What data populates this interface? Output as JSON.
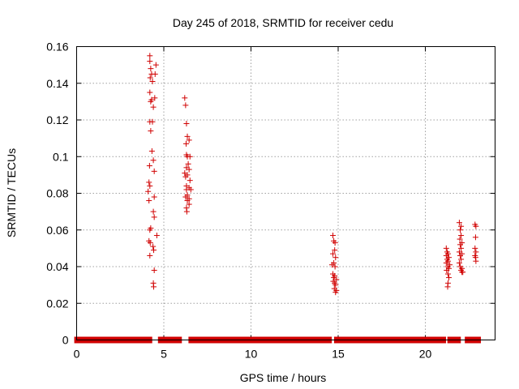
{
  "chart_data": {
    "type": "scatter",
    "title": "Day 245 of 2018, SRMTID for receiver cedu",
    "xlabel": "GPS time / hours",
    "ylabel": "SRMTID / TECUs",
    "xlim": [
      0,
      24
    ],
    "ylim": [
      0,
      0.16
    ],
    "xticks": [
      0,
      5,
      10,
      15,
      20
    ],
    "xtick_labels": [
      "0",
      "5",
      "10",
      "15",
      "20"
    ],
    "yticks": [
      0,
      0.02,
      0.04,
      0.06,
      0.08,
      0.1,
      0.12,
      0.14,
      0.16
    ],
    "ytick_labels": [
      "0",
      "0.02",
      "0.04",
      "0.06",
      "0.08",
      "0.1",
      "0.12",
      "0.14",
      "0.16"
    ],
    "grid": true,
    "marker": "plus",
    "series_color": "#d00000",
    "baseline_zero_intervals": [
      [
        0.05,
        4.15
      ],
      [
        4.85,
        5.85
      ],
      [
        6.6,
        9.25
      ],
      [
        9.35,
        10.55
      ],
      [
        10.9,
        14.45
      ],
      [
        14.95,
        21.0
      ],
      [
        21.45,
        21.85
      ],
      [
        22.45,
        23.0
      ]
    ],
    "points": [
      [
        4.2,
        0.155
      ],
      [
        4.2,
        0.152
      ],
      [
        4.25,
        0.148
      ],
      [
        4.3,
        0.145
      ],
      [
        4.22,
        0.143
      ],
      [
        4.35,
        0.141
      ],
      [
        4.2,
        0.135
      ],
      [
        4.3,
        0.131
      ],
      [
        4.25,
        0.13
      ],
      [
        4.4,
        0.127
      ],
      [
        4.2,
        0.119
      ],
      [
        4.35,
        0.119
      ],
      [
        4.25,
        0.114
      ],
      [
        4.32,
        0.103
      ],
      [
        4.4,
        0.098
      ],
      [
        4.18,
        0.095
      ],
      [
        4.45,
        0.092
      ],
      [
        4.15,
        0.086
      ],
      [
        4.2,
        0.084
      ],
      [
        4.1,
        0.081
      ],
      [
        4.15,
        0.076
      ],
      [
        4.45,
        0.078
      ],
      [
        4.4,
        0.07
      ],
      [
        4.45,
        0.067
      ],
      [
        4.25,
        0.061
      ],
      [
        4.2,
        0.06
      ],
      [
        4.6,
        0.057
      ],
      [
        4.15,
        0.054
      ],
      [
        4.22,
        0.053
      ],
      [
        4.38,
        0.051
      ],
      [
        4.42,
        0.049
      ],
      [
        4.2,
        0.046
      ],
      [
        4.45,
        0.038
      ],
      [
        4.4,
        0.031
      ],
      [
        4.42,
        0.029
      ],
      [
        4.55,
        0.15
      ],
      [
        4.5,
        0.145
      ],
      [
        4.48,
        0.132
      ],
      [
        6.2,
        0.132
      ],
      [
        6.25,
        0.128
      ],
      [
        6.3,
        0.118
      ],
      [
        6.35,
        0.111
      ],
      [
        6.45,
        0.109
      ],
      [
        6.28,
        0.107
      ],
      [
        6.3,
        0.101
      ],
      [
        6.35,
        0.1
      ],
      [
        6.5,
        0.1
      ],
      [
        6.4,
        0.096
      ],
      [
        6.3,
        0.094
      ],
      [
        6.45,
        0.093
      ],
      [
        6.2,
        0.091
      ],
      [
        6.35,
        0.09
      ],
      [
        6.25,
        0.089
      ],
      [
        6.5,
        0.087
      ],
      [
        6.3,
        0.084
      ],
      [
        6.45,
        0.083
      ],
      [
        6.3,
        0.082
      ],
      [
        6.55,
        0.082
      ],
      [
        6.35,
        0.079
      ],
      [
        6.25,
        0.078
      ],
      [
        6.45,
        0.077
      ],
      [
        6.35,
        0.076
      ],
      [
        6.45,
        0.074
      ],
      [
        6.3,
        0.072
      ],
      [
        6.32,
        0.07
      ],
      [
        14.7,
        0.057
      ],
      [
        14.75,
        0.054
      ],
      [
        14.82,
        0.053
      ],
      [
        14.8,
        0.049
      ],
      [
        14.7,
        0.047
      ],
      [
        14.85,
        0.045
      ],
      [
        14.75,
        0.042
      ],
      [
        14.65,
        0.041
      ],
      [
        14.82,
        0.04
      ],
      [
        14.7,
        0.036
      ],
      [
        14.8,
        0.035
      ],
      [
        14.75,
        0.034
      ],
      [
        14.9,
        0.033
      ],
      [
        14.72,
        0.032
      ],
      [
        14.8,
        0.031
      ],
      [
        14.85,
        0.03
      ],
      [
        14.78,
        0.028
      ],
      [
        14.9,
        0.027
      ],
      [
        14.85,
        0.026
      ],
      [
        21.2,
        0.05
      ],
      [
        21.25,
        0.048
      ],
      [
        21.3,
        0.047
      ],
      [
        21.2,
        0.046
      ],
      [
        21.35,
        0.045
      ],
      [
        21.25,
        0.044
      ],
      [
        21.3,
        0.043
      ],
      [
        21.2,
        0.042
      ],
      [
        21.4,
        0.041
      ],
      [
        21.28,
        0.04
      ],
      [
        21.35,
        0.039
      ],
      [
        21.22,
        0.038
      ],
      [
        21.3,
        0.036
      ],
      [
        21.35,
        0.034
      ],
      [
        21.3,
        0.031
      ],
      [
        21.28,
        0.029
      ],
      [
        21.95,
        0.064
      ],
      [
        22.05,
        0.062
      ],
      [
        22.0,
        0.06
      ],
      [
        22.05,
        0.057
      ],
      [
        21.98,
        0.055
      ],
      [
        22.1,
        0.053
      ],
      [
        22.0,
        0.052
      ],
      [
        22.05,
        0.05
      ],
      [
        21.95,
        0.048
      ],
      [
        22.1,
        0.047
      ],
      [
        22.0,
        0.046
      ],
      [
        22.05,
        0.044
      ],
      [
        21.95,
        0.042
      ],
      [
        22.0,
        0.04
      ],
      [
        22.1,
        0.039
      ],
      [
        22.05,
        0.038
      ],
      [
        22.15,
        0.037
      ],
      [
        22.1,
        0.037
      ],
      [
        22.85,
        0.063
      ],
      [
        22.9,
        0.062
      ],
      [
        22.88,
        0.056
      ],
      [
        22.85,
        0.05
      ],
      [
        22.9,
        0.048
      ],
      [
        22.85,
        0.046
      ],
      [
        22.88,
        0.045
      ],
      [
        22.9,
        0.043
      ]
    ]
  }
}
